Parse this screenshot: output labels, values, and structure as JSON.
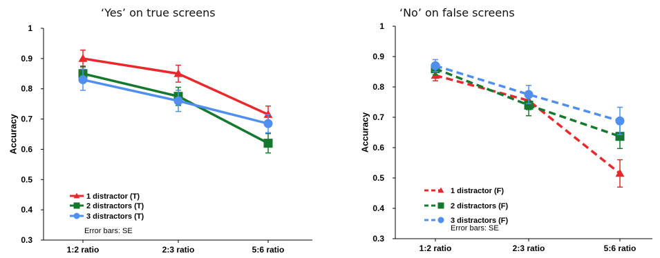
{
  "chart_data": [
    {
      "type": "line",
      "title": "‘Yes’ on true screens",
      "ylabel": "Accuracy",
      "xlabel": "",
      "categories": [
        "1:2 ratio",
        "2:3 ratio",
        "5:6 ratio"
      ],
      "ylim": [
        0.3,
        1.0
      ],
      "yticks": [
        "0.3",
        "0.4",
        "0.5",
        "0.6",
        "0.7",
        "0.8",
        "0.9",
        "1"
      ],
      "grid": false,
      "legend_position": "bottom-left",
      "note": "Error bars: SE",
      "series": [
        {
          "name": "1 distractor (T)",
          "values": [
            0.9,
            0.85,
            0.715
          ],
          "errors": [
            0.028,
            0.028,
            0.028
          ],
          "color": "#e8282b",
          "marker": "triangle",
          "dashed": false
        },
        {
          "name": "2 distractors (T)",
          "values": [
            0.85,
            0.775,
            0.62
          ],
          "errors": [
            0.025,
            0.03,
            0.032
          ],
          "color": "#14782d",
          "marker": "square",
          "dashed": false
        },
        {
          "name": "3 distractors (T)",
          "values": [
            0.83,
            0.76,
            0.685
          ],
          "errors": [
            0.035,
            0.035,
            0.03
          ],
          "color": "#4f8ff0",
          "marker": "circle",
          "dashed": false
        }
      ]
    },
    {
      "type": "line",
      "title": "‘No’ on false screens",
      "ylabel": "Accuracy",
      "xlabel": "",
      "categories": [
        "1:2 ratio",
        "2:3 ratio",
        "5:6 ratio"
      ],
      "ylim": [
        0.3,
        1.0
      ],
      "yticks": [
        "0.3",
        "0.4",
        "0.5",
        "0.6",
        "0.7",
        "0.8",
        "0.9",
        "1"
      ],
      "grid": false,
      "legend_position": "bottom-left",
      "note": "Error bars: SE",
      "series": [
        {
          "name": "1 distractor (F)",
          "values": [
            0.838,
            0.755,
            0.515
          ],
          "errors": [
            0.018,
            0.03,
            0.045
          ],
          "color": "#e8282b",
          "marker": "triangle",
          "dashed": true
        },
        {
          "name": "2 distractors (F)",
          "values": [
            0.86,
            0.74,
            0.637
          ],
          "errors": [
            0.02,
            0.035,
            0.04
          ],
          "color": "#14782d",
          "marker": "square",
          "dashed": true
        },
        {
          "name": "3 distractors (F)",
          "values": [
            0.87,
            0.775,
            0.688
          ],
          "errors": [
            0.02,
            0.03,
            0.045
          ],
          "color": "#4f8ff0",
          "marker": "circle",
          "dashed": true
        }
      ]
    }
  ]
}
